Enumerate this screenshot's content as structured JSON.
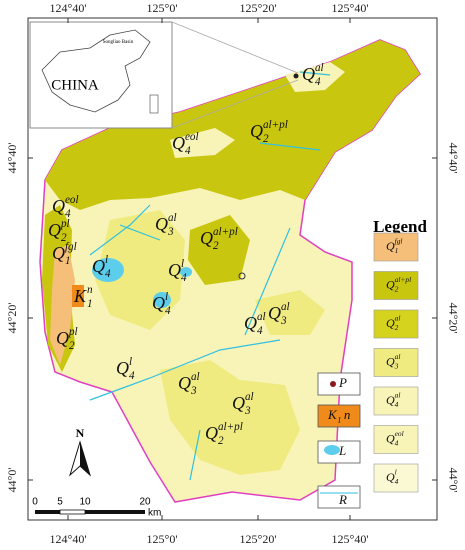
{
  "axes": {
    "top": [
      "124°40'",
      "125°0'",
      "125°20'",
      "125°40'"
    ],
    "bottom": [
      "124°40'",
      "125°0'",
      "125°20'",
      "125°40'"
    ],
    "left": [
      "44°40'",
      "44°20'",
      "44°0'"
    ],
    "right": [
      "44°40'",
      "44°20'",
      "44°0'"
    ]
  },
  "inset": {
    "country": "CHINA",
    "basin": "Songliao Basin"
  },
  "map_labels": [
    {
      "base": "Q",
      "sub": "4",
      "sup": "al"
    },
    {
      "base": "Q",
      "sub": "4",
      "sup": "eol"
    },
    {
      "base": "Q",
      "sub": "2",
      "sup": "al+pl"
    },
    {
      "base": "Q",
      "sub": "4",
      "sup": "eol"
    },
    {
      "base": "Q",
      "sub": "2",
      "sup": "pl"
    },
    {
      "base": "Q",
      "sub": "1",
      "sup": "fgl"
    },
    {
      "base": "Q",
      "sub": "3",
      "sup": "al"
    },
    {
      "base": "Q",
      "sub": "2",
      "sup": "al+pl"
    },
    {
      "base": "Q",
      "sub": "4",
      "sup": "l"
    },
    {
      "base": "Q",
      "sub": "4",
      "sup": "l"
    },
    {
      "base": "K",
      "sub": "1",
      "sup": "n"
    },
    {
      "base": "Q",
      "sub": "4",
      "sup": "l"
    },
    {
      "base": "Q",
      "sub": "4",
      "sup": "al"
    },
    {
      "base": "Q",
      "sub": "3",
      "sup": "al"
    },
    {
      "base": "Q",
      "sub": "2",
      "sup": "pl"
    },
    {
      "base": "Q",
      "sub": "4",
      "sup": "l"
    },
    {
      "base": "Q",
      "sub": "3",
      "sup": "al"
    },
    {
      "base": "Q",
      "sub": "3",
      "sup": "al"
    },
    {
      "base": "Q",
      "sub": "2",
      "sup": "al+pl"
    }
  ],
  "legend": {
    "title": "Legend",
    "items": [
      {
        "base": "Q",
        "sub": "1",
        "sup": "fgl"
      },
      {
        "base": "Q",
        "sub": "2",
        "sup": "al+pl"
      },
      {
        "base": "Q",
        "sub": "2",
        "sup": "al"
      },
      {
        "base": "Q",
        "sub": "3",
        "sup": "al"
      },
      {
        "base": "Q",
        "sub": "4",
        "sup": "al"
      },
      {
        "base": "Q",
        "sub": "4",
        "sup": "eol"
      },
      {
        "base": "Q",
        "sub": "4",
        "sup": "l"
      }
    ],
    "symbols": [
      {
        "base": "P"
      },
      {
        "base": "K",
        "sub": "1",
        "tail": "n"
      },
      {
        "base": "L"
      },
      {
        "base": "R"
      }
    ]
  },
  "scale": {
    "ticks": [
      "0",
      "5",
      "10",
      "20"
    ],
    "unit": "km"
  },
  "north": "N"
}
